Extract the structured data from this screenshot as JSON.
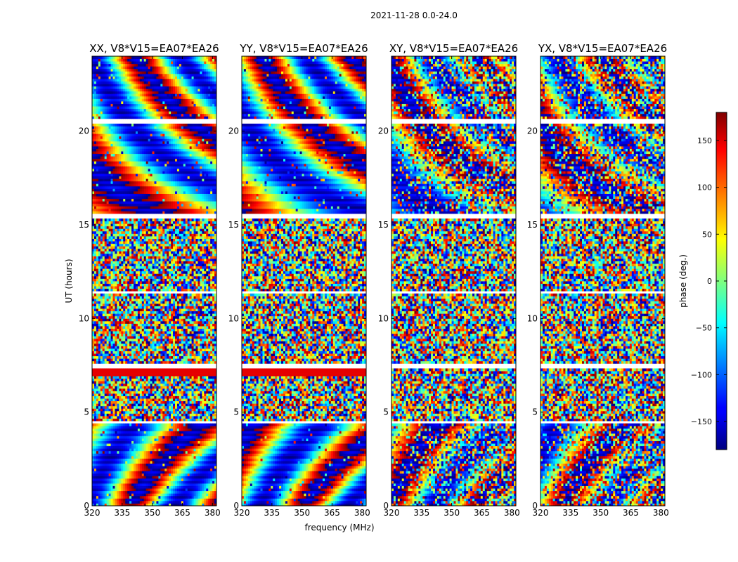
{
  "chart_data": {
    "type": "heatmap",
    "suptitle": "2021-11-28 0.0-24.0",
    "xlabel": "frequency (MHz)",
    "ylabel": "UT (hours)",
    "xlim": [
      320,
      382
    ],
    "ylim": [
      0,
      24
    ],
    "x_ticks": [
      320,
      335,
      350,
      365,
      380
    ],
    "y_ticks": [
      0,
      5,
      10,
      15,
      20
    ],
    "panels": [
      {
        "title": "XX, V8*V15=EA07*EA26",
        "mode": "coherent"
      },
      {
        "title": "YY, V8*V15=EA07*EA26",
        "mode": "coherent"
      },
      {
        "title": "XY, V8*V15=EA07*EA26",
        "mode": "noisy"
      },
      {
        "title": "YX, V8*V15=EA07*EA26",
        "mode": "noisy"
      }
    ],
    "colorbar": {
      "label": "phase (deg.)",
      "range": [
        -180,
        180
      ],
      "ticks": [
        150,
        100,
        50,
        0,
        -50,
        -100,
        -150
      ],
      "tick_labels": [
        "150",
        "100",
        "50",
        "0",
        "−50",
        "−100",
        "−150"
      ],
      "colormap": "jet"
    },
    "time_structure": {
      "phase_coherent_hours": [
        [
          0,
          4.5
        ],
        [
          15.5,
          24
        ]
      ],
      "noise_dominated_hours": [
        [
          4.5,
          15.5
        ]
      ],
      "strong_coherent_band_hours": [
        6.9,
        7.3
      ],
      "flagged_gap_hours": [
        [
          4.4,
          4.6
        ],
        [
          7.3,
          7.6
        ],
        [
          11.3,
          11.4
        ],
        [
          15.3,
          15.6
        ],
        [
          20.4,
          20.6
        ]
      ]
    }
  },
  "colors": {
    "flag_gap": "#ffffff",
    "background": "#ffffff"
  }
}
